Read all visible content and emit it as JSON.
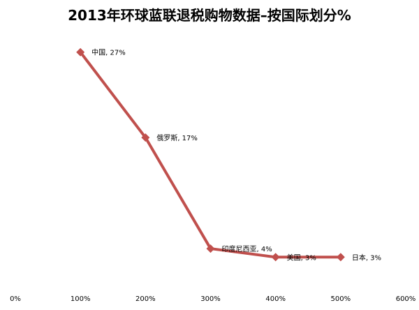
{
  "chart_data": {
    "type": "line",
    "title": "2013年环球蓝联退税购物数据–按国际划分%",
    "xlabel": "",
    "ylabel": "",
    "x_ticks": [
      "0%",
      "100%",
      "200%",
      "300%",
      "400%",
      "500%",
      "600%"
    ],
    "xlim": [
      0,
      6
    ],
    "ylim": [
      0,
      30
    ],
    "grid": false,
    "legend": "none",
    "line_color": "#C0504D",
    "series": [
      {
        "points": [
          {
            "x": 1,
            "y": 27,
            "label": "中国, 27%"
          },
          {
            "x": 2,
            "y": 17,
            "label": "俄罗斯, 17%"
          },
          {
            "x": 3,
            "y": 4,
            "label": "印度尼西亚, 4%"
          },
          {
            "x": 4,
            "y": 3,
            "label": "美国, 3%"
          },
          {
            "x": 5,
            "y": 3,
            "label": "日本, 3%"
          }
        ]
      }
    ]
  }
}
